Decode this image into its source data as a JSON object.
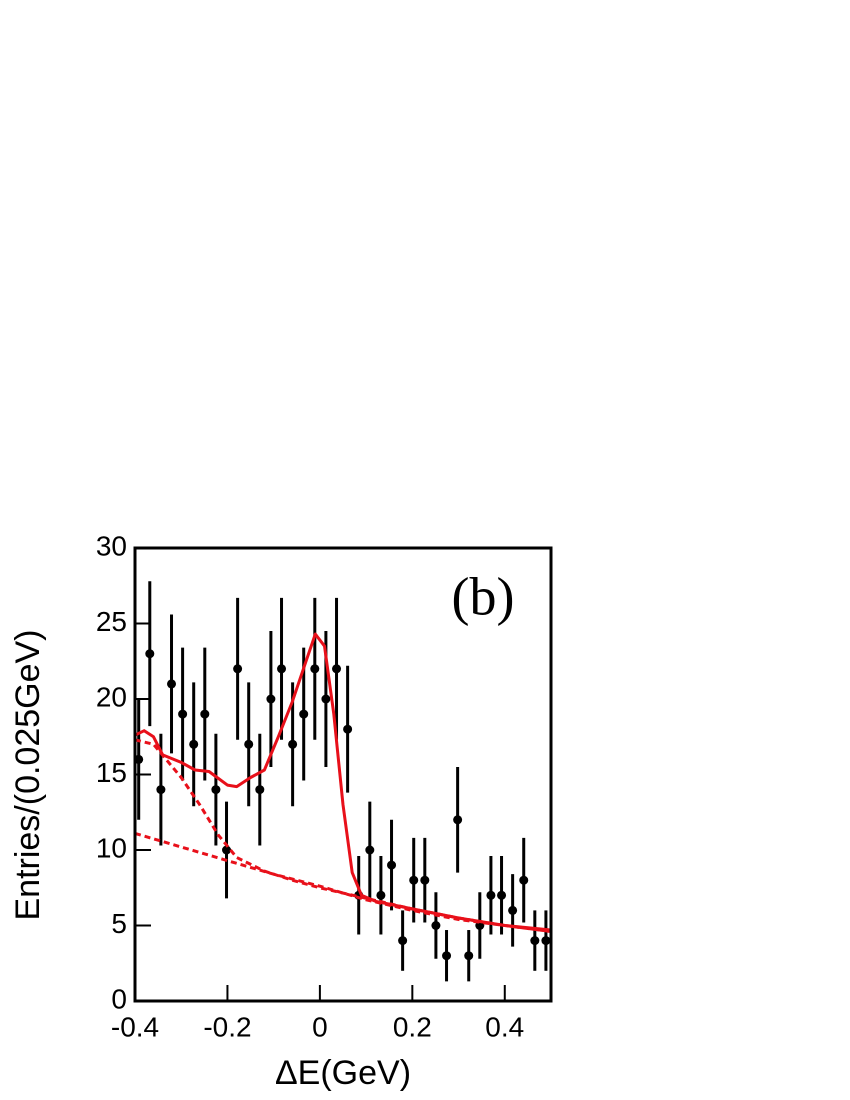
{
  "chart_data": {
    "type": "scatter",
    "annotation": "(b)",
    "x_label": "ΔE(GeV)",
    "y_label": "Entries/(0.025GeV)",
    "xlim": [
      -0.4,
      0.5
    ],
    "ylim": [
      0,
      30
    ],
    "xticks": [
      -0.4,
      -0.2,
      0,
      0.2,
      0.4
    ],
    "yticks": [
      0,
      5,
      10,
      15,
      20,
      25,
      30
    ],
    "series": [
      {
        "style": "points",
        "color": "#000000",
        "x": [
          -0.392,
          -0.368,
          -0.344,
          -0.321,
          -0.297,
          -0.273,
          -0.249,
          -0.225,
          -0.202,
          -0.178,
          -0.154,
          -0.13,
          -0.106,
          -0.083,
          -0.059,
          -0.035,
          -0.011,
          0.013,
          0.036,
          0.06,
          0.084,
          0.108,
          0.132,
          0.155,
          0.179,
          0.203,
          0.227,
          0.251,
          0.274,
          0.298,
          0.322,
          0.346,
          0.37,
          0.393,
          0.417,
          0.441,
          0.465,
          0.489
        ],
        "values": [
          16,
          23,
          14,
          21,
          19,
          17,
          19,
          14,
          10,
          22,
          17,
          14,
          20,
          22,
          17,
          19,
          22,
          20,
          22,
          18,
          7,
          10,
          7,
          9,
          4,
          8,
          8,
          5,
          3,
          12,
          3,
          5,
          7,
          7,
          6,
          8,
          4,
          4
        ],
        "errors": [
          4.0,
          4.8,
          3.7,
          4.6,
          4.4,
          4.1,
          4.4,
          3.7,
          3.2,
          4.7,
          4.1,
          3.7,
          4.5,
          4.7,
          4.1,
          4.4,
          4.7,
          4.5,
          4.7,
          4.2,
          2.6,
          3.2,
          2.6,
          3.0,
          2.0,
          2.8,
          2.8,
          2.2,
          1.7,
          3.5,
          1.7,
          2.2,
          2.6,
          2.6,
          2.4,
          2.8,
          2.0,
          2.0
        ]
      },
      {
        "style": "solid",
        "color": "#e8101a",
        "x": [
          -0.4,
          -0.38,
          -0.36,
          -0.34,
          -0.3,
          -0.27,
          -0.24,
          -0.2,
          -0.18,
          -0.15,
          -0.12,
          -0.09,
          -0.06,
          -0.03,
          -0.01,
          0.01,
          0.03,
          0.05,
          0.07,
          0.09,
          0.12,
          0.2,
          0.3,
          0.4,
          0.5
        ],
        "values": [
          17.6,
          17.9,
          17.5,
          16.3,
          15.8,
          15.3,
          15.2,
          14.3,
          14.2,
          14.8,
          15.3,
          17.5,
          19.8,
          22.5,
          24.3,
          23.5,
          19,
          13,
          8.5,
          7.0,
          6.6,
          6.1,
          5.5,
          5.0,
          4.7
        ]
      },
      {
        "style": "dashed",
        "color": "#e8101a",
        "x": [
          -0.4,
          -0.36,
          -0.3,
          -0.26,
          -0.22,
          -0.18,
          -0.12,
          -0.06,
          0,
          0.1,
          0.2,
          0.3,
          0.4,
          0.5
        ],
        "values": [
          17.3,
          17.0,
          14.8,
          13.0,
          11.0,
          9.5,
          8.6,
          8.0,
          7.5,
          6.8,
          6.1,
          5.5,
          5.0,
          4.6
        ]
      },
      {
        "style": "dashed",
        "color": "#e8101a",
        "x": [
          -0.4,
          -0.3,
          -0.2,
          -0.1,
          0,
          0.1,
          0.2,
          0.3,
          0.4,
          0.5
        ],
        "values": [
          11.1,
          10.2,
          9.3,
          8.4,
          7.6,
          6.7,
          6.0,
          5.4,
          5.0,
          4.6
        ]
      }
    ]
  }
}
